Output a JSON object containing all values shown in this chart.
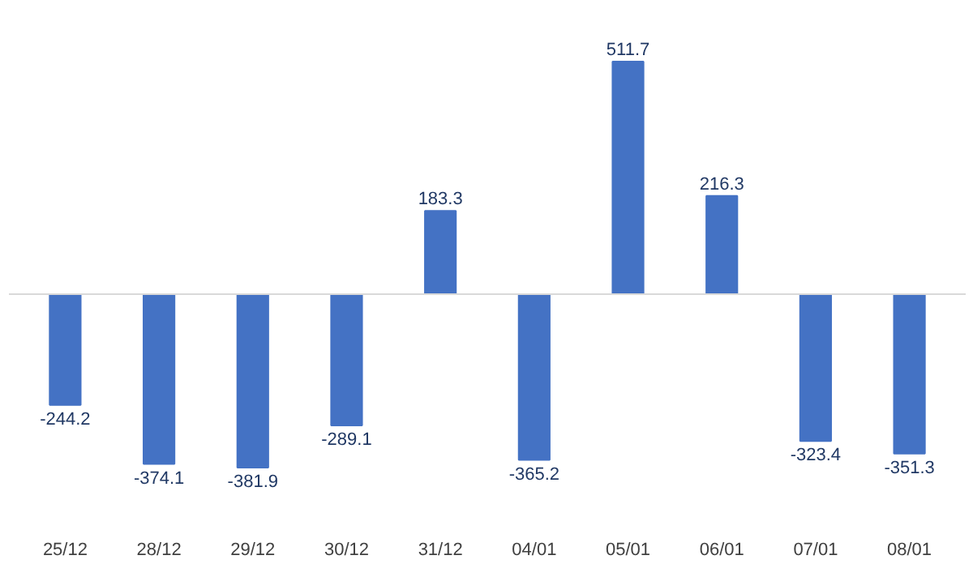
{
  "chart_data": {
    "type": "bar",
    "categories": [
      "25/12",
      "28/12",
      "29/12",
      "30/12",
      "31/12",
      "04/01",
      "05/01",
      "06/01",
      "07/01",
      "08/01"
    ],
    "values": [
      -244.2,
      -374.1,
      -381.9,
      -289.1,
      183.3,
      -365.2,
      511.7,
      216.3,
      -323.4,
      -351.3
    ],
    "color": "#4472c4",
    "data_labels": true
  }
}
